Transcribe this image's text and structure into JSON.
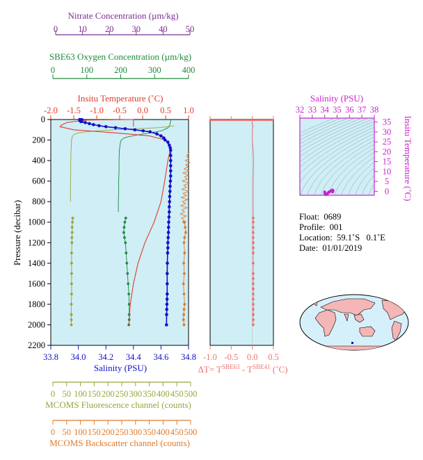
{
  "colors": {
    "nitrate": "#7a2e8e",
    "oxygen": "#1f8a3a",
    "temperature": "#e23a2a",
    "salinity": "#1010cc",
    "fluorescence": "#9aa43a",
    "backscatter": "#e07a2a",
    "delta_t": "#f07070",
    "ts_axis": "#cc22cc",
    "plot_bg": "#cfeef6",
    "map_land": "#f4b6b6",
    "map_ocean": "#d6f0fb"
  },
  "icons": {
    "world_map": "world-map-icon"
  },
  "info": {
    "float": "Float:  0689",
    "profile": "Profile:  001",
    "location": "Location:  59.1˚S   0.1˚E",
    "date": "Date:  01/01/2019"
  },
  "chart_data": [
    {
      "type": "line",
      "title": "",
      "ylabel": "Pressure (decibar)",
      "y_ticks": [
        "0",
        "200",
        "400",
        "600",
        "800",
        "1000",
        "1200",
        "1400",
        "1600",
        "1800",
        "2000",
        "2200"
      ],
      "ylim": [
        0,
        2200
      ],
      "axes": {
        "nitrate": {
          "label": "Nitrate Concentration (µm/kg)",
          "ticks": [
            "0",
            "10",
            "20",
            "30",
            "40",
            "50"
          ],
          "lim": [
            0,
            50
          ]
        },
        "oxygen": {
          "label": "SBE63 Oxygen Concentration (µm/kg)",
          "ticks": [
            "0",
            "100",
            "200",
            "300",
            "400"
          ],
          "lim": [
            0,
            400
          ]
        },
        "temperature": {
          "label": "Insitu Temperature (˚C)",
          "ticks": [
            "-2.0",
            "-1.5",
            "-1.0",
            "-0.5",
            "0.0",
            "0.5",
            "1.0"
          ],
          "lim": [
            -2.0,
            1.0
          ]
        },
        "salinity": {
          "label": "Salinity (PSU)",
          "ticks": [
            "33.8",
            "34.0",
            "34.2",
            "34.4",
            "34.6",
            "34.8"
          ],
          "lim": [
            33.8,
            34.8
          ]
        },
        "fluorescence": {
          "label": "MCOMS Fluorescence channel (counts)",
          "ticks": [
            "0",
            "50",
            "100",
            "150",
            "200",
            "250",
            "300",
            "350",
            "400",
            "450",
            "500"
          ],
          "lim": [
            0,
            500
          ]
        },
        "backscatter": {
          "label": "MCOMS Backscatter channel (counts)",
          "ticks": [
            "0",
            "50",
            "100",
            "150",
            "200",
            "250",
            "300",
            "350",
            "400",
            "450",
            "500"
          ],
          "lim": [
            0,
            500
          ]
        }
      },
      "series": [
        {
          "name": "Insitu Temperature",
          "axis": "temperature",
          "x": [
            -0.2,
            -1.2,
            -1.5,
            -1.65,
            -1.75,
            -1.8,
            -1.5,
            -0.6,
            0.15,
            0.5,
            0.6,
            0.6,
            0.55,
            0.48,
            0.4,
            0.25,
            0.05,
            -0.1,
            -0.2,
            -0.27,
            -0.3
          ],
          "y": [
            0,
            5,
            20,
            30,
            50,
            70,
            100,
            130,
            160,
            200,
            250,
            300,
            400,
            600,
            800,
            1000,
            1200,
            1400,
            1600,
            1800,
            2000
          ]
        },
        {
          "name": "Salinity",
          "axis": "salinity",
          "markers": true,
          "x": [
            34.01,
            34.01,
            34.02,
            34.05,
            34.08,
            34.11,
            34.15,
            34.2,
            34.27,
            34.34,
            34.41,
            34.47,
            34.52,
            34.57,
            34.6,
            34.62,
            34.63,
            34.65,
            34.66,
            34.667,
            34.67,
            34.67,
            34.67,
            34.67,
            34.67,
            34.67,
            34.668,
            34.666,
            34.665,
            34.663,
            34.662,
            34.66,
            34.66,
            34.658,
            34.656,
            34.655,
            34.654,
            34.652,
            34.65,
            34.65,
            34.648,
            34.646,
            34.645,
            34.645,
            34.645,
            34.644,
            34.643,
            34.642,
            34.641,
            34.64
          ],
          "y": [
            0,
            10,
            20,
            30,
            40,
            50,
            60,
            70,
            80,
            90,
            100,
            110,
            120,
            140,
            160,
            180,
            200,
            220,
            250,
            275,
            300,
            350,
            400,
            450,
            500,
            550,
            600,
            650,
            700,
            750,
            800,
            850,
            900,
            950,
            1000,
            1050,
            1100,
            1150,
            1200,
            1250,
            1300,
            1400,
            1500,
            1600,
            1700,
            1750,
            1800,
            1850,
            1900,
            2000
          ]
        },
        {
          "name": "SBE63 Oxygen Concentration",
          "axis": "oxygen",
          "x": [
            348,
            347,
            345,
            340,
            320,
            285,
            250,
            220,
            210,
            205,
            200,
            198,
            196,
            195,
            195,
            194,
            194,
            193,
            193
          ],
          "y": [
            0,
            20,
            50,
            80,
            110,
            130,
            150,
            170,
            180,
            190,
            210,
            250,
            300,
            400,
            500,
            600,
            700,
            800,
            900
          ]
        },
        {
          "name": "SBE63 Oxygen Concentration (low-res)",
          "axis": "oxygen",
          "markers": true,
          "x": [
            215,
            212,
            210,
            209,
            211,
            214,
            216,
            218,
            220,
            222,
            224,
            225,
            225,
            225,
            224
          ],
          "y": [
            960,
            1000,
            1050,
            1100,
            1150,
            1200,
            1300,
            1400,
            1500,
            1600,
            1700,
            1800,
            1900,
            1950,
            2000
          ]
        },
        {
          "name": "MCOMS Fluorescence channel",
          "axis": "fluorescence",
          "x": [
            440,
            420,
            380,
            300,
            220,
            160,
            120,
            95,
            80,
            75,
            70,
            68,
            66,
            65,
            65,
            64,
            64,
            64
          ],
          "y": [
            60,
            70,
            80,
            90,
            100,
            110,
            120,
            130,
            140,
            150,
            170,
            200,
            300,
            400,
            500,
            600,
            700,
            800
          ]
        },
        {
          "name": "MCOMS Fluorescence channel (low-res)",
          "axis": "fluorescence",
          "markers": true,
          "x": [
            72,
            71,
            70,
            70,
            69,
            69,
            68,
            68,
            68,
            68,
            68,
            67,
            67,
            67,
            67
          ],
          "y": [
            960,
            1000,
            1050,
            1100,
            1150,
            1200,
            1300,
            1400,
            1500,
            1600,
            1700,
            1800,
            1900,
            1950,
            2000
          ]
        },
        {
          "name": "MCOMS Backscatter channel",
          "axis": "backscatter",
          "x": [
            495,
            490,
            485,
            495,
            480,
            498,
            482,
            490,
            476,
            495,
            472,
            492,
            478,
            488,
            470,
            496,
            475,
            485,
            468,
            494,
            472,
            486,
            466,
            490,
            470,
            482,
            464,
            488,
            468,
            478,
            462,
            485,
            467,
            476,
            470,
            480
          ],
          "y": [
            320,
            340,
            360,
            380,
            400,
            420,
            440,
            460,
            480,
            500,
            520,
            540,
            560,
            580,
            600,
            620,
            640,
            660,
            680,
            700,
            720,
            740,
            760,
            780,
            800,
            820,
            840,
            860,
            880,
            900,
            920,
            940,
            960,
            980,
            1000,
            1020
          ]
        },
        {
          "name": "MCOMS Backscatter channel (low-res)",
          "axis": "backscatter",
          "markers": true,
          "x": [
            478,
            480,
            482,
            478,
            476,
            478,
            475,
            477,
            474,
            476,
            478,
            476,
            475,
            474,
            476
          ],
          "y": [
            1000,
            1050,
            1100,
            1150,
            1200,
            1300,
            1400,
            1500,
            1600,
            1700,
            1800,
            1850,
            1900,
            1950,
            2000
          ]
        },
        {
          "name": "Bottle marker",
          "axis": "salinity",
          "markers": true,
          "x": [
            34.02,
            34.03
          ],
          "y": [
            0,
            20
          ]
        }
      ],
      "reference_lines": [
        {
          "axis": "temperature",
          "x": -0.2,
          "y": [
            0,
            70
          ]
        }
      ]
    },
    {
      "type": "line",
      "title": "",
      "xlabel": "ΔT= TSBE63 - TSBE41 (˚C)",
      "xlabel_parts": {
        "lead": "ΔT= T",
        "sup1": "SBE63",
        "mid": " - T",
        "sup2": "SBE41",
        "tail": " (˚C)"
      },
      "x_ticks": [
        "-1.0",
        "-0.5",
        "0.0",
        "0.5"
      ],
      "xlim": [
        -1.0,
        0.5
      ],
      "ylim": [
        0,
        2200
      ],
      "series": [
        {
          "name": "ΔT",
          "x": [
            0.01,
            0.0,
            -0.01,
            0.02,
            0.01,
            0.0,
            0.0,
            0.02,
            0.03,
            0.02,
            0.02,
            0.02,
            0.02,
            0.02,
            0.02,
            0.02,
            0.02
          ],
          "y": [
            0,
            20,
            40,
            60,
            80,
            100,
            200,
            300,
            400,
            600,
            800,
            1000,
            1200,
            1400,
            1600,
            1800,
            2000
          ]
        },
        {
          "name": "ΔT (low-res)",
          "markers": true,
          "x": [
            0.02,
            0.02,
            0.02,
            0.02,
            0.02,
            0.02,
            0.02,
            0.02,
            0.02,
            0.02,
            0.02,
            0.02,
            0.02,
            0.02,
            0.02,
            0.02,
            0.02,
            0.02,
            0.02,
            0.02,
            0.02
          ],
          "y": [
            960,
            1000,
            1050,
            1100,
            1150,
            1200,
            1250,
            1300,
            1400,
            1500,
            1550,
            1600,
            1650,
            1700,
            1750,
            1800,
            1850,
            1900,
            1950,
            2000,
            1650
          ]
        }
      ]
    },
    {
      "type": "scatter",
      "title": "",
      "xlabel": "Salinity (PSU)",
      "ylabel": "Insitu Temperature (˚C)",
      "x_ticks": [
        "32",
        "33",
        "34",
        "35",
        "36",
        "37",
        "38"
      ],
      "y_ticks": [
        "0",
        "5",
        "10",
        "15",
        "20",
        "25",
        "30",
        "35"
      ],
      "xlim": [
        32,
        38
      ],
      "ylim": [
        -2,
        37
      ],
      "density_contours": true,
      "points": {
        "x": [
          34.0,
          34.02,
          34.05,
          34.1,
          34.15,
          34.2,
          34.25,
          34.3,
          34.35,
          34.4,
          34.45,
          34.5,
          34.55,
          34.6,
          34.62,
          34.64,
          34.65,
          34.66,
          34.66,
          34.67,
          34.67,
          34.66,
          34.65,
          34.64
        ],
        "y": [
          -0.3,
          -1.0,
          -1.5,
          -1.7,
          -1.6,
          -1.3,
          -1.0,
          -0.7,
          -0.4,
          -0.2,
          0.0,
          0.2,
          0.4,
          0.5,
          0.6,
          0.6,
          0.55,
          0.5,
          0.45,
          0.4,
          0.3,
          0.1,
          -0.1,
          -0.3
        ]
      }
    }
  ]
}
